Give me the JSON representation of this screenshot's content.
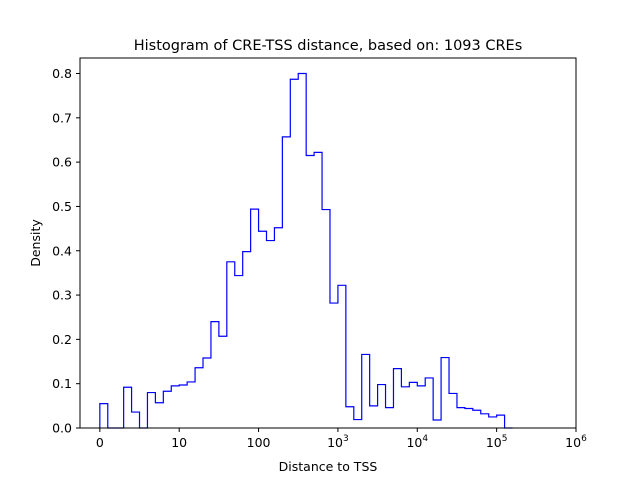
{
  "chart_data": {
    "type": "histogram",
    "title": "Histogram of CRE-TSS distance, based on: 1093 CREs",
    "xlabel": "Distance to TSS",
    "ylabel": "Density",
    "x_scale": "symlog",
    "x_range": [
      -0.25,
      6
    ],
    "ylim": [
      0,
      0.835
    ],
    "x_tick_labels": [
      {
        "base": "0",
        "exp": "",
        "at": 0
      },
      {
        "base": "10",
        "exp": "",
        "at": 1
      },
      {
        "base": "100",
        "exp": "",
        "at": 2
      },
      {
        "base": "10",
        "exp": "3",
        "at": 3
      },
      {
        "base": "10",
        "exp": "4",
        "at": 4
      },
      {
        "base": "10",
        "exp": "5",
        "at": 5
      },
      {
        "base": "10",
        "exp": "6",
        "at": 6
      }
    ],
    "y_ticks": [
      "0.0",
      "0.1",
      "0.2",
      "0.3",
      "0.4",
      "0.5",
      "0.6",
      "0.7",
      "0.8"
    ],
    "y_tick_values": [
      0,
      0.1,
      0.2,
      0.3,
      0.4,
      0.5,
      0.6,
      0.7,
      0.8
    ],
    "bin_width": 0.1,
    "bin_start": 0.0,
    "series": [
      {
        "color": "#0000ff",
        "densities": [
          0.055,
          0,
          0,
          0.092,
          0.036,
          0,
          0.08,
          0.057,
          0.083,
          0.095,
          0.097,
          0.104,
          0.136,
          0.158,
          0.24,
          0.207,
          0.375,
          0.344,
          0.398,
          0.494,
          0.444,
          0.423,
          0.452,
          0.657,
          0.787,
          0.8,
          0.615,
          0.622,
          0.493,
          0.282,
          0.322,
          0.048,
          0.019,
          0.166,
          0.05,
          0.098,
          0.046,
          0.134,
          0.093,
          0.103,
          0.095,
          0.113,
          0.018,
          0.159,
          0.078,
          0.046,
          0.044,
          0.04,
          0.032,
          0.025,
          0.029,
          0
        ]
      }
    ],
    "grid": false,
    "legend": "none"
  }
}
